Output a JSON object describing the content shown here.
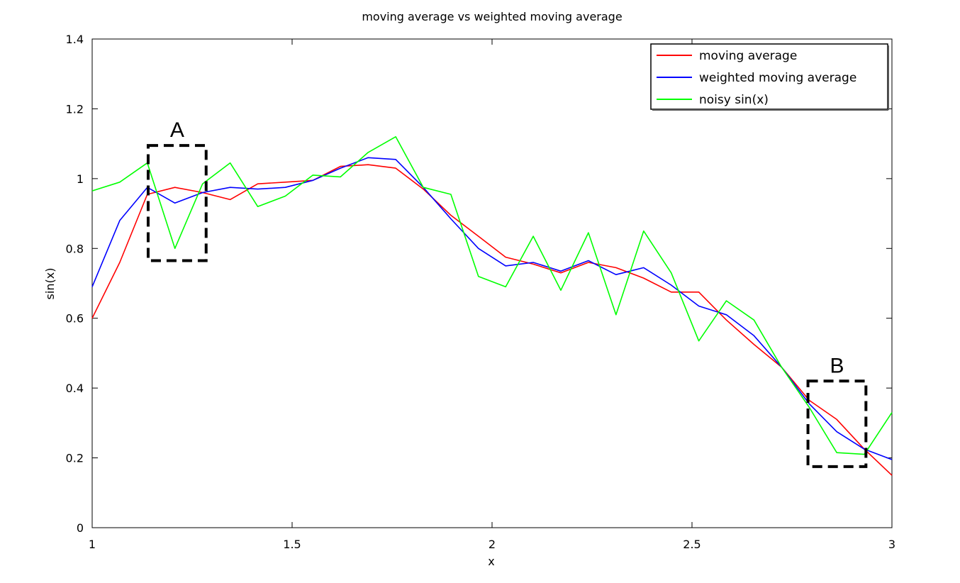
{
  "chart_data": {
    "type": "line",
    "title": "moving average vs weighted moving average",
    "xlabel": "x",
    "ylabel": "sin(x)",
    "xlim": [
      1,
      3
    ],
    "ylim": [
      0,
      1.4
    ],
    "xticks": [
      "1",
      "1.5",
      "2",
      "2.5",
      "3"
    ],
    "yticks": [
      "0",
      "0.2",
      "0.4",
      "0.6",
      "0.8",
      "1",
      "1.2",
      "1.4"
    ],
    "grid": false,
    "legend_position": "top-right",
    "x": [
      1.0,
      1.069,
      1.138,
      1.207,
      1.276,
      1.345,
      1.414,
      1.483,
      1.552,
      1.621,
      1.69,
      1.759,
      1.828,
      1.897,
      1.966,
      2.034,
      2.103,
      2.172,
      2.241,
      2.31,
      2.379,
      2.448,
      2.517,
      2.586,
      2.655,
      2.724,
      2.793,
      2.862,
      2.931,
      3.0
    ],
    "series": [
      {
        "name": "moving average",
        "color": "#ff0000",
        "values": [
          0.6,
          0.76,
          0.955,
          0.975,
          0.96,
          0.94,
          0.985,
          0.99,
          0.995,
          1.035,
          1.04,
          1.03,
          0.97,
          0.895,
          0.835,
          0.775,
          0.755,
          0.73,
          0.76,
          0.745,
          0.715,
          0.675,
          0.675,
          0.595,
          0.525,
          0.46,
          0.365,
          0.31,
          0.225,
          0.15
        ]
      },
      {
        "name": "weighted moving average",
        "color": "#0000ff",
        "values": [
          0.69,
          0.88,
          0.975,
          0.93,
          0.96,
          0.975,
          0.97,
          0.975,
          0.995,
          1.03,
          1.06,
          1.055,
          0.975,
          0.885,
          0.8,
          0.75,
          0.76,
          0.735,
          0.765,
          0.725,
          0.745,
          0.695,
          0.635,
          0.61,
          0.55,
          0.46,
          0.355,
          0.275,
          0.225,
          0.195
        ]
      },
      {
        "name": "noisy sin(x)",
        "color": "#00ff00",
        "values": [
          0.965,
          0.99,
          1.045,
          0.8,
          0.985,
          1.045,
          0.92,
          0.95,
          1.01,
          1.005,
          1.075,
          1.12,
          0.975,
          0.955,
          0.72,
          0.69,
          0.835,
          0.68,
          0.845,
          0.61,
          0.85,
          0.73,
          0.535,
          0.65,
          0.595,
          0.46,
          0.345,
          0.215,
          0.21,
          0.33
        ]
      }
    ],
    "annotations": [
      {
        "label": "A",
        "x_range": [
          1.14,
          1.285
        ],
        "y_range": [
          0.765,
          1.095
        ]
      },
      {
        "label": "B",
        "x_range": [
          2.79,
          2.935
        ],
        "y_range": [
          0.175,
          0.42
        ]
      }
    ]
  }
}
